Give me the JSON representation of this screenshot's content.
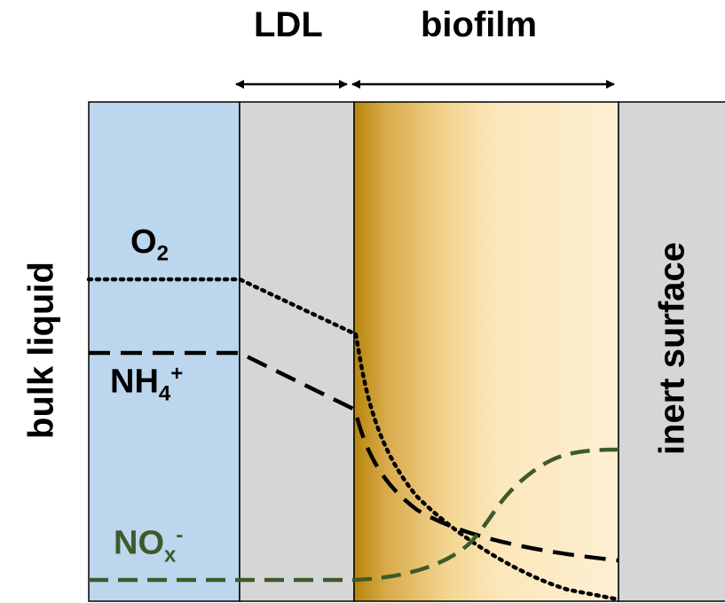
{
  "header": {
    "ldl_label": "LDL",
    "biofilm_label": "biofilm"
  },
  "zones": {
    "bulk_liquid_label": "bulk liquid",
    "inert_surface_label": "inert surface"
  },
  "species": {
    "o2": {
      "base": "O",
      "sub": "2",
      "sup": "",
      "color": "#000000",
      "line_style": "dotted"
    },
    "nh4": {
      "base": "NH",
      "sub": "4",
      "sup": "+",
      "color": "#000000",
      "line_style": "dashed"
    },
    "nox": {
      "base": "NO",
      "sub": "x",
      "sup": "-",
      "color": "#3d5a2a",
      "line_style": "dashed"
    }
  },
  "colors": {
    "bulk_liquid": "#bcd6ee",
    "ldl": "#d6d6d6",
    "biofilm_dark": "#c9960a",
    "biofilm_light": "#fdebc6",
    "inert_surface": "#d6d6d6"
  }
}
